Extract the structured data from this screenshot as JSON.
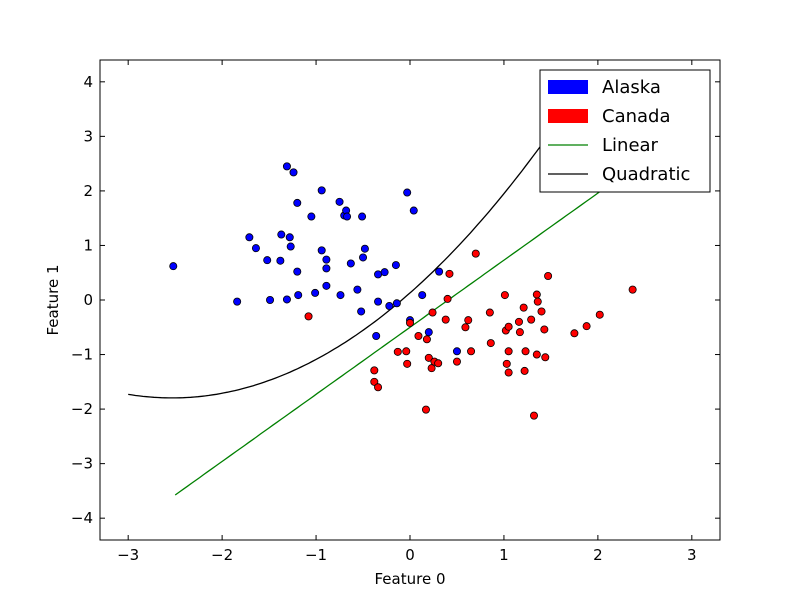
{
  "chart_data": {
    "type": "scatter",
    "xlabel": "Feature 0",
    "ylabel": "Feature 1",
    "xlim": [
      -3.3,
      3.3
    ],
    "ylim": [
      -4.4,
      4.4
    ],
    "xticks": [
      -3,
      -2,
      -1,
      0,
      1,
      2,
      3
    ],
    "yticks": [
      -4,
      -3,
      -2,
      -1,
      0,
      1,
      2,
      3,
      4
    ],
    "xtick_labels": [
      "−3",
      "−2",
      "−1",
      "0",
      "1",
      "2",
      "3"
    ],
    "ytick_labels": [
      "−4",
      "−3",
      "−2",
      "−1",
      "0",
      "1",
      "2",
      "3",
      "4"
    ],
    "grid": false,
    "legend_position": "top-right",
    "legend": [
      {
        "label": "Alaska",
        "kind": "patch",
        "color": "#0000ff"
      },
      {
        "label": "Canada",
        "kind": "patch",
        "color": "#ff0000"
      },
      {
        "label": "Linear",
        "kind": "line",
        "color": "#008000"
      },
      {
        "label": "Quadratic",
        "kind": "line",
        "color": "#000000"
      }
    ],
    "series": [
      {
        "name": "Alaska",
        "color": "#0000ff",
        "points": [
          [
            -2.52,
            0.62
          ],
          [
            -1.84,
            -0.03
          ],
          [
            -1.71,
            1.15
          ],
          [
            -1.64,
            0.95
          ],
          [
            -1.52,
            0.73
          ],
          [
            -1.49,
            0.0
          ],
          [
            -1.37,
            1.2
          ],
          [
            -1.38,
            0.72
          ],
          [
            -1.31,
            2.45
          ],
          [
            -1.31,
            0.01
          ],
          [
            -1.28,
            1.15
          ],
          [
            -1.27,
            0.98
          ],
          [
            -1.24,
            2.34
          ],
          [
            -1.2,
            1.78
          ],
          [
            -1.2,
            0.52
          ],
          [
            -1.19,
            0.09
          ],
          [
            -1.05,
            1.53
          ],
          [
            -1.01,
            0.13
          ],
          [
            -0.94,
            2.01
          ],
          [
            -0.94,
            0.91
          ],
          [
            -0.89,
            0.74
          ],
          [
            -0.89,
            0.58
          ],
          [
            -0.89,
            0.26
          ],
          [
            -0.75,
            1.8
          ],
          [
            -0.74,
            0.09
          ],
          [
            -0.7,
            1.55
          ],
          [
            -0.68,
            1.64
          ],
          [
            -0.67,
            1.53
          ],
          [
            -0.63,
            0.67
          ],
          [
            -0.56,
            0.19
          ],
          [
            -0.51,
            1.53
          ],
          [
            -0.5,
            0.78
          ],
          [
            -0.48,
            0.94
          ],
          [
            -0.52,
            -0.21
          ],
          [
            -0.36,
            -0.66
          ],
          [
            -0.34,
            0.47
          ],
          [
            -0.34,
            -0.03
          ],
          [
            -0.27,
            0.51
          ],
          [
            -0.22,
            -0.11
          ],
          [
            -0.15,
            0.64
          ],
          [
            -0.14,
            -0.06
          ],
          [
            -0.03,
            1.97
          ],
          [
            0.04,
            1.64
          ],
          [
            0.0,
            -0.37
          ],
          [
            0.13,
            0.09
          ],
          [
            0.2,
            -0.59
          ],
          [
            0.31,
            0.52
          ],
          [
            0.5,
            -0.94
          ]
        ]
      },
      {
        "name": "Canada",
        "color": "#ff0000",
        "points": [
          [
            -1.08,
            -0.3
          ],
          [
            -0.38,
            -1.29
          ],
          [
            -0.38,
            -1.5
          ],
          [
            -0.34,
            -1.6
          ],
          [
            -0.13,
            -0.95
          ],
          [
            -0.04,
            -0.94
          ],
          [
            -0.03,
            -1.17
          ],
          [
            0.0,
            -0.42
          ],
          [
            0.09,
            -0.66
          ],
          [
            0.17,
            -2.01
          ],
          [
            0.18,
            -0.72
          ],
          [
            0.2,
            -1.06
          ],
          [
            0.23,
            -1.25
          ],
          [
            0.24,
            -0.23
          ],
          [
            0.26,
            -1.13
          ],
          [
            0.3,
            -1.16
          ],
          [
            0.38,
            -0.36
          ],
          [
            0.4,
            0.02
          ],
          [
            0.42,
            0.48
          ],
          [
            0.5,
            -1.13
          ],
          [
            0.59,
            -0.5
          ],
          [
            0.62,
            -0.37
          ],
          [
            0.65,
            -0.94
          ],
          [
            0.7,
            0.85
          ],
          [
            0.85,
            -0.23
          ],
          [
            0.86,
            -0.79
          ],
          [
            1.01,
            0.09
          ],
          [
            1.02,
            -0.56
          ],
          [
            1.03,
            -1.17
          ],
          [
            1.05,
            -0.49
          ],
          [
            1.05,
            -0.94
          ],
          [
            1.05,
            -1.33
          ],
          [
            1.16,
            -0.4
          ],
          [
            1.17,
            -0.59
          ],
          [
            1.21,
            -0.14
          ],
          [
            1.22,
            -1.3
          ],
          [
            1.23,
            -0.94
          ],
          [
            1.29,
            -0.36
          ],
          [
            1.32,
            -2.12
          ],
          [
            1.35,
            0.1
          ],
          [
            1.36,
            -0.03
          ],
          [
            1.35,
            -1.0
          ],
          [
            1.4,
            -0.21
          ],
          [
            1.43,
            -0.54
          ],
          [
            1.44,
            -1.05
          ],
          [
            1.47,
            0.44
          ],
          [
            1.75,
            -0.61
          ],
          [
            1.88,
            -0.48
          ],
          [
            2.02,
            -0.27
          ],
          [
            2.37,
            0.19
          ]
        ]
      }
    ],
    "lines": [
      {
        "name": "Linear",
        "color": "#008000",
        "x_range": [
          -2.5,
          2.7
        ]
      },
      {
        "name": "Quadratic",
        "color": "#000000",
        "x_range": [
          -3.0,
          1.7
        ]
      }
    ]
  }
}
